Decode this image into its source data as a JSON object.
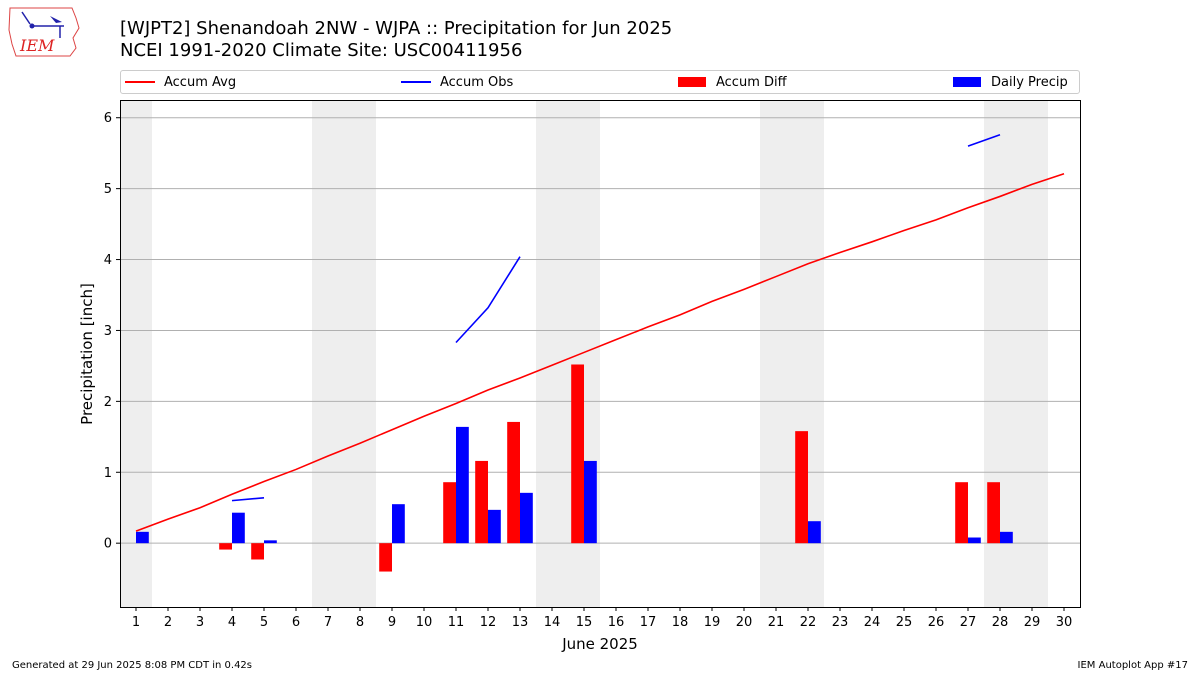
{
  "header": {
    "title_line1": "[WJPT2] Shenandoah 2NW - WJPA :: Precipitation for Jun 2025",
    "title_line2": "NCEI 1991-2020 Climate Site: USC00411956"
  },
  "logo": {
    "text": "IEM"
  },
  "footer": {
    "left": "Generated at 29 Jun 2025 8:08 PM CDT in 0.42s",
    "right": "IEM Autoplot App #17"
  },
  "colors": {
    "avg": "#ff0000",
    "obs": "#0000ff",
    "diff": "#ff0000",
    "daily": "#0000ff",
    "weekend_shade": "#eeeeee",
    "grid": "#b0b0b0"
  },
  "chart_data": {
    "type": "bar",
    "xlabel": "June 2025",
    "ylabel": "Precipitation [inch]",
    "xlim": [
      0.5,
      30.5
    ],
    "ylim": [
      -0.9,
      6.25
    ],
    "yticks": [
      0,
      1,
      2,
      3,
      4,
      5,
      6
    ],
    "days": [
      1,
      2,
      3,
      4,
      5,
      6,
      7,
      8,
      9,
      10,
      11,
      12,
      13,
      14,
      15,
      16,
      17,
      18,
      19,
      20,
      21,
      22,
      23,
      24,
      25,
      26,
      27,
      28,
      29,
      30
    ],
    "weekend_shading": [
      [
        0.5,
        1.5
      ],
      [
        6.5,
        8.5
      ],
      [
        13.5,
        15.5
      ],
      [
        20.5,
        22.5
      ],
      [
        27.5,
        29.5
      ]
    ],
    "legend": [
      "Accum Avg",
      "Accum Obs",
      "Accum Diff",
      "Daily Precip"
    ],
    "series": [
      {
        "name": "Accum Avg",
        "kind": "line",
        "values": [
          0.17,
          0.34,
          0.5,
          0.69,
          0.87,
          1.04,
          1.23,
          1.41,
          1.6,
          1.79,
          1.97,
          2.16,
          2.33,
          2.51,
          2.69,
          2.87,
          3.05,
          3.22,
          3.41,
          3.58,
          3.76,
          3.94,
          4.1,
          4.25,
          4.41,
          4.56,
          4.73,
          4.89,
          5.06,
          5.21
        ]
      },
      {
        "name": "Accum Obs",
        "kind": "line",
        "values": [
          null,
          null,
          null,
          0.6,
          0.64,
          null,
          null,
          null,
          null,
          null,
          2.83,
          3.32,
          4.04,
          null,
          null,
          null,
          null,
          null,
          null,
          null,
          null,
          null,
          null,
          null,
          null,
          null,
          5.6,
          5.76,
          null,
          null
        ]
      },
      {
        "name": "Accum Diff",
        "kind": "bar",
        "values": [
          0,
          0,
          0,
          -0.09,
          -0.23,
          0,
          0,
          0,
          -0.4,
          0,
          0.86,
          1.16,
          1.71,
          0,
          2.52,
          0,
          0,
          0,
          0,
          0,
          0,
          1.58,
          0,
          0,
          0,
          0,
          0.86,
          0.86,
          0,
          0
        ]
      },
      {
        "name": "Daily Precip",
        "kind": "bar",
        "values": [
          0.16,
          0,
          0,
          0.43,
          0.04,
          0,
          0,
          0,
          0.55,
          0,
          1.64,
          0.47,
          0.71,
          0,
          1.16,
          0,
          0,
          0,
          0,
          0,
          0,
          0.31,
          0,
          0,
          0,
          0,
          0.08,
          0.16,
          0,
          0
        ]
      }
    ]
  }
}
